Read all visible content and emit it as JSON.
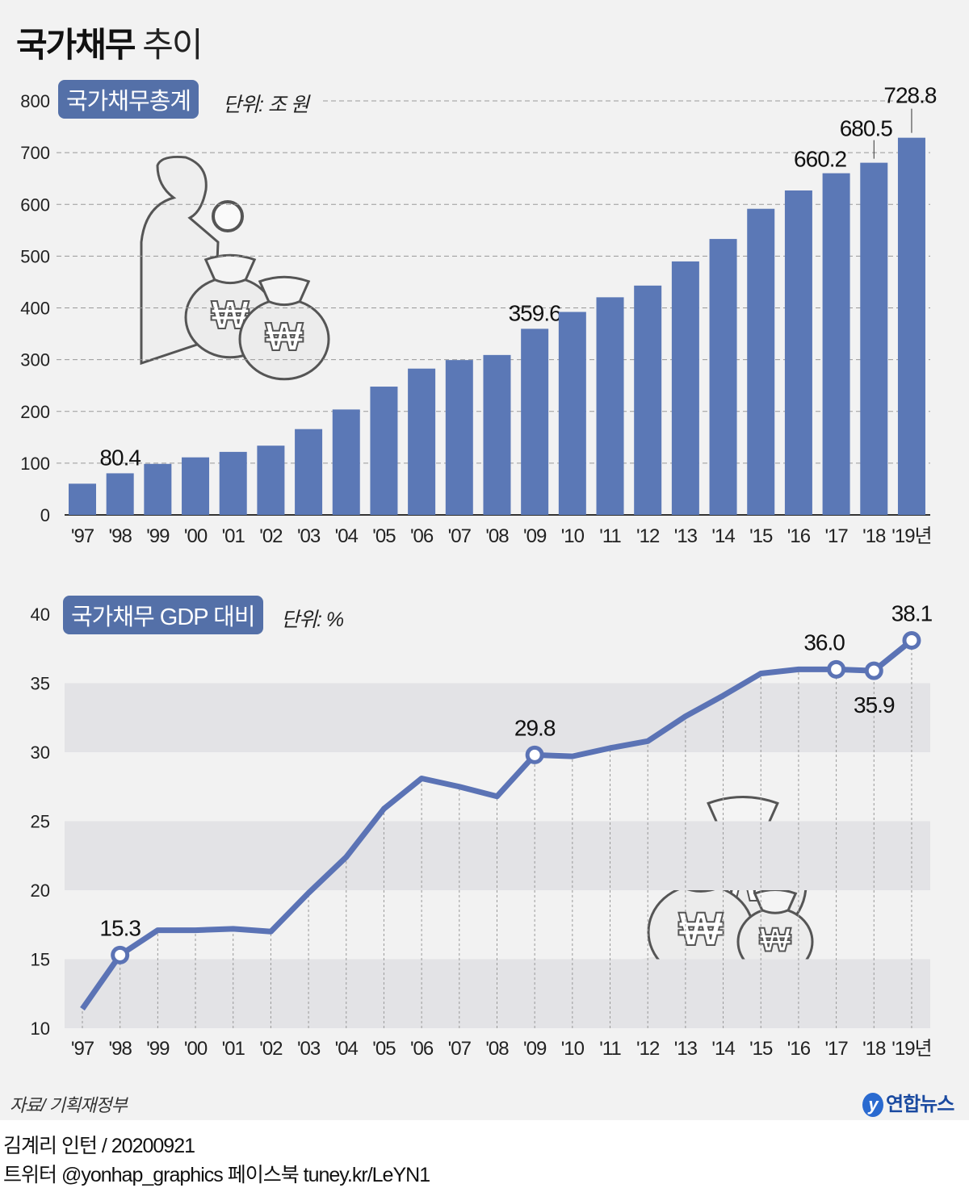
{
  "title": {
    "bold": "국가채무",
    "light": "추이"
  },
  "colors": {
    "bar": "#5b78b6",
    "line": "#5b73b5",
    "label_box": "#5470a8",
    "band": "#e3e3e6",
    "background": "#f2f2f2"
  },
  "chart_data": [
    {
      "type": "bar",
      "title": "국가채무총계",
      "unit": "단위: 조 원",
      "categories": [
        "'97",
        "'98",
        "'99",
        "'00",
        "'01",
        "'02",
        "'03",
        "'04",
        "'05",
        "'06",
        "'07",
        "'08",
        "'09",
        "'10",
        "'11",
        "'12",
        "'13",
        "'14",
        "'15",
        "'16",
        "'17",
        "'18",
        "'19년"
      ],
      "values": [
        60.3,
        80.4,
        98.6,
        111.2,
        121.8,
        133.8,
        165.8,
        203.7,
        247.9,
        282.7,
        299.2,
        309.0,
        359.6,
        392.2,
        420.5,
        443.1,
        489.8,
        533.2,
        591.5,
        626.9,
        660.2,
        680.5,
        728.8
      ],
      "data_labels": {
        "'98": "80.4",
        "'09": "359.6",
        "'17": "660.2",
        "'18": "680.5",
        "'19년": "728.8"
      },
      "ylim": [
        0,
        800
      ],
      "yticks": [
        "0",
        "100",
        "200",
        "300",
        "400",
        "500",
        "600",
        "700",
        "800"
      ],
      "grid": "dashed horizontal"
    },
    {
      "type": "line",
      "title": "국가채무 GDP 대비",
      "unit": "단위: %",
      "categories": [
        "'97",
        "'98",
        "'99",
        "'00",
        "'01",
        "'02",
        "'03",
        "'04",
        "'05",
        "'06",
        "'07",
        "'08",
        "'09",
        "'10",
        "'11",
        "'12",
        "'13",
        "'14",
        "'15",
        "'16",
        "'17",
        "'18",
        "'19년"
      ],
      "values": [
        11.4,
        15.3,
        17.1,
        17.1,
        17.2,
        17.0,
        19.8,
        22.4,
        25.9,
        28.1,
        27.5,
        26.8,
        29.8,
        29.7,
        30.3,
        30.8,
        32.6,
        34.1,
        35.7,
        36.0,
        36.0,
        35.9,
        38.1
      ],
      "data_labels": {
        "'98": "15.3",
        "'09": "29.8",
        "'17": "36.0",
        "'18": "35.9",
        "'19년": "38.1"
      },
      "ylim": [
        10,
        40
      ],
      "yticks": [
        "10",
        "15",
        "20",
        "25",
        "30",
        "35",
        "40"
      ],
      "grid": "alternating bands"
    }
  ],
  "footer": {
    "source": "자료/ 기획재정부",
    "logo": "연합뉴스",
    "credit": "김계리 인턴 / 20200921",
    "social": "트위터 @yonhap_graphics  페이스북 tuney.kr/LeYN1"
  }
}
